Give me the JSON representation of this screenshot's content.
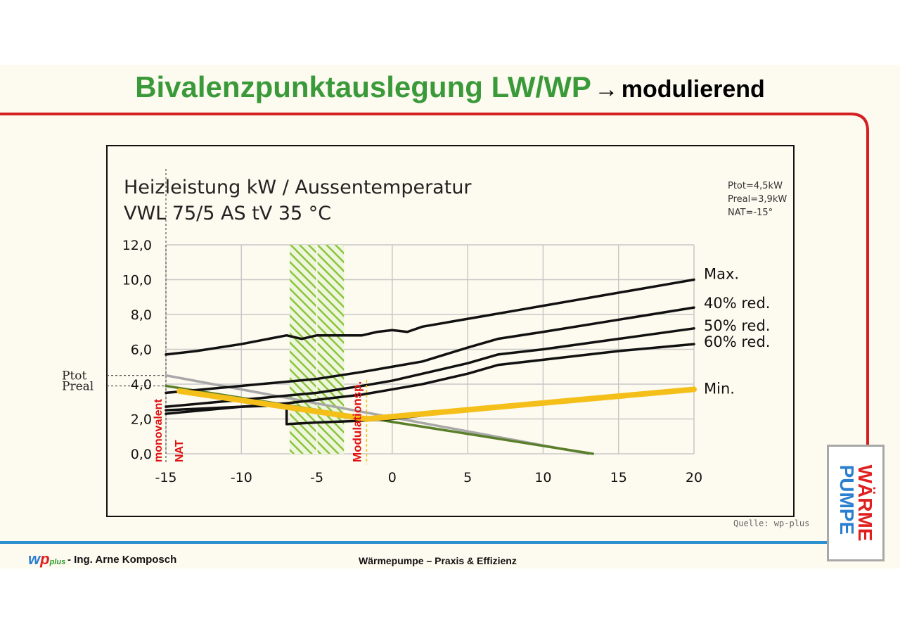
{
  "slide": {
    "title_main": "Bivalenzpunktauslegung LW/WP",
    "title_arrow": "→",
    "title_sub": "modulierend",
    "footer_author": "- Ing. Arne Komposch",
    "footer_center": "Wärmepumpe – Praxis & Effizienz",
    "logo_w": "w",
    "logo_p": "p",
    "logo_plus": "plus",
    "source": "Quelle: wp-plus",
    "badge_line1": "WÄRME",
    "badge_line2": "PUMPE",
    "colors": {
      "title_green": "#3a9a3a",
      "frame_red": "#d42020",
      "footer_blue": "#2b8fd0",
      "min_yellow": "#f5bf1a",
      "line_grey": "#a8a8a8",
      "line_green": "#5a7f2a",
      "hatch_green": "#8cc43c",
      "marker_red": "#e01010"
    }
  },
  "chart_data": {
    "type": "line",
    "title": "Heizleistung kW / Aussentemperatur",
    "subtitle": "VWL 75/5 AS tV 35 °C",
    "info": [
      "Ptot=4,5kW",
      "Preal=3,9kW",
      "NAT=-15°"
    ],
    "x_ticks": [
      "-15",
      "-10",
      "-5",
      "0",
      "5",
      "10",
      "15",
      "20"
    ],
    "y_ticks": [
      "0,0",
      "2,0",
      "4,0",
      "6,0",
      "8,0",
      "10,0",
      "12,0"
    ],
    "xlim": [
      -15,
      20
    ],
    "ylim": [
      0,
      12
    ],
    "grid": true,
    "series": [
      {
        "name": "Max.",
        "x": [
          -15,
          -13,
          -10,
          -7,
          -6,
          -5,
          -4,
          -3,
          -2,
          -1,
          0,
          1,
          2,
          4,
          6,
          8,
          10,
          12,
          14,
          16,
          18,
          20
        ],
        "y": [
          5.7,
          5.9,
          6.3,
          6.8,
          6.6,
          6.8,
          6.8,
          6.8,
          6.8,
          7.0,
          7.1,
          7.0,
          7.3,
          7.6,
          7.9,
          8.2,
          8.5,
          8.8,
          9.1,
          9.4,
          9.7,
          10.0
        ]
      },
      {
        "name": "40% red.",
        "x": [
          -15,
          -10,
          -5,
          -2,
          0,
          2,
          5,
          7,
          10,
          15,
          20
        ],
        "y": [
          3.5,
          3.9,
          4.3,
          4.7,
          5.0,
          5.3,
          6.1,
          6.6,
          7.0,
          7.7,
          8.4
        ]
      },
      {
        "name": "50% red.",
        "x": [
          -15,
          -10,
          -5,
          -2,
          0,
          2,
          5,
          7,
          10,
          15,
          20
        ],
        "y": [
          2.7,
          3.1,
          3.5,
          3.9,
          4.2,
          4.6,
          5.2,
          5.7,
          6.0,
          6.6,
          7.2
        ]
      },
      {
        "name": "60% red.",
        "x": [
          -15,
          -10,
          -7,
          -5,
          -2,
          0,
          2,
          5,
          7,
          10,
          15,
          20
        ],
        "y": [
          2.3,
          2.7,
          2.9,
          3.1,
          3.4,
          3.7,
          4.0,
          4.6,
          5.1,
          5.4,
          5.9,
          6.3
        ]
      },
      {
        "name": "Min.",
        "x": [
          -15,
          -10,
          -7,
          -7,
          -5,
          -2,
          0,
          5,
          10,
          15,
          20
        ],
        "y": [
          2.5,
          2.7,
          2.8,
          1.7,
          1.8,
          1.9,
          2.0,
          2.5,
          2.9,
          3.3,
          3.7
        ]
      }
    ],
    "heating_load_line": {
      "x": [
        -15,
        13
      ],
      "y": [
        4.5,
        0
      ]
    },
    "real_load_line": {
      "x": [
        -15,
        13.3
      ],
      "y": [
        3.9,
        0
      ]
    },
    "min_modulation_line": {
      "x": [
        -14.1,
        -1.7,
        20
      ],
      "y": [
        3.6,
        2.0,
        3.7
      ]
    },
    "hatched_band": [
      -6.8,
      -3.2
    ],
    "markers": [
      {
        "label": "monovalent",
        "x": -15
      },
      {
        "label": "NAT",
        "x": -15
      },
      {
        "label": "Modulationsp.",
        "x": -1.7
      }
    ],
    "ref_labels": [
      {
        "label": "Ptot",
        "value": 4.5
      },
      {
        "label": "Preal",
        "value": 3.9
      }
    ]
  }
}
